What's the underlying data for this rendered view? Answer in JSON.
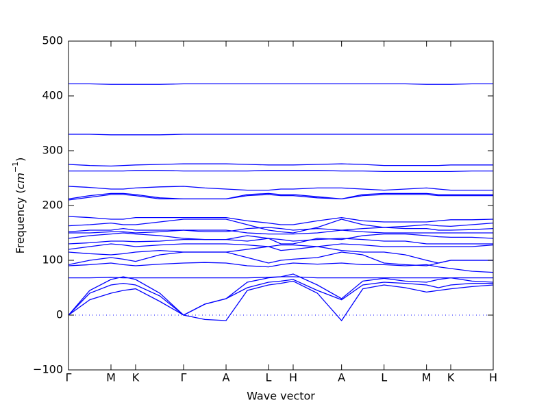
{
  "chart_data": {
    "type": "line",
    "color": "#0000ff",
    "x_label": "Wave vector",
    "y_label": {
      "text": "Frequency (",
      "unit": "cm",
      "exponent": "−1",
      "close": ")"
    },
    "xlim": [
      0,
      1
    ],
    "ylim": [
      -100,
      500
    ],
    "xticks": [
      {
        "value": 0,
        "label": "Γ"
      },
      {
        "value": 0.1,
        "label": "M"
      },
      {
        "value": 0.158,
        "label": "K"
      },
      {
        "value": 0.271,
        "label": "Γ"
      },
      {
        "value": 0.371,
        "label": "A"
      },
      {
        "value": 0.471,
        "label": "L"
      },
      {
        "value": 0.529,
        "label": "H"
      },
      {
        "value": 0.643,
        "label": "A"
      },
      {
        "value": 0.743,
        "label": "L"
      },
      {
        "value": 0.843,
        "label": "M"
      },
      {
        "value": 0.9,
        "label": "K"
      },
      {
        "value": 1,
        "label": "H"
      }
    ],
    "yticks": [
      {
        "value": -100,
        "label": "−100"
      },
      0,
      100,
      200,
      300,
      400,
      500
    ],
    "hline": 0,
    "x": [
      0,
      0.05,
      0.1,
      0.129,
      0.158,
      0.215,
      0.271,
      0.321,
      0.371,
      0.421,
      0.471,
      0.5,
      0.529,
      0.586,
      0.643,
      0.693,
      0.743,
      0.793,
      0.843,
      0.871,
      0.9,
      0.95,
      1
    ],
    "series": [
      {
        "values": [
          0,
          28,
          40,
          45,
          48,
          25,
          0,
          -8,
          -10,
          45,
          55,
          58,
          62,
          40,
          -10,
          48,
          55,
          50,
          42,
          45,
          48,
          52,
          55
        ]
      },
      {
        "values": [
          0,
          40,
          55,
          58,
          55,
          35,
          0,
          20,
          30,
          50,
          60,
          62,
          65,
          45,
          28,
          55,
          60,
          58,
          55,
          50,
          55,
          58,
          58
        ]
      },
      {
        "values": [
          0,
          45,
          65,
          70,
          65,
          40,
          0,
          20,
          30,
          60,
          68,
          70,
          75,
          55,
          30,
          62,
          67,
          62,
          60,
          65,
          68,
          62,
          60
        ]
      },
      {
        "values": [
          68,
          68,
          69,
          68,
          68,
          68,
          68,
          68,
          68,
          68,
          69,
          70,
          70,
          68,
          68,
          68,
          68,
          68,
          68,
          68,
          68,
          68,
          68
        ]
      },
      {
        "values": [
          90,
          92,
          95,
          92,
          90,
          93,
          95,
          96,
          95,
          90,
          88,
          92,
          95,
          93,
          95,
          92,
          92,
          90,
          92,
          88,
          85,
          80,
          78
        ]
      },
      {
        "values": [
          92,
          100,
          105,
          102,
          98,
          110,
          115,
          115,
          115,
          105,
          95,
          100,
          102,
          105,
          115,
          110,
          95,
          92,
          90,
          95,
          100,
          100,
          100
        ]
      },
      {
        "values": [
          115,
          112,
          110,
          112,
          115,
          118,
          115,
          115,
          115,
          120,
          125,
          118,
          120,
          125,
          118,
          115,
          115,
          110,
          100,
          95,
          100,
          100,
          100
        ]
      },
      {
        "values": [
          120,
          125,
          130,
          128,
          125,
          128,
          130,
          130,
          130,
          128,
          125,
          128,
          128,
          125,
          130,
          128,
          125,
          125,
          125,
          125,
          125,
          125,
          128
        ]
      },
      {
        "values": [
          130,
          132,
          135,
          135,
          134,
          135,
          138,
          138,
          138,
          135,
          140,
          138,
          135,
          138,
          140,
          138,
          135,
          135,
          130,
          130,
          130,
          130,
          130
        ]
      },
      {
        "values": [
          140,
          145,
          148,
          150,
          148,
          145,
          140,
          138,
          138,
          145,
          140,
          130,
          130,
          140,
          138,
          145,
          148,
          148,
          145,
          143,
          142,
          142,
          140
        ]
      },
      {
        "values": [
          150,
          150,
          152,
          152,
          150,
          152,
          155,
          155,
          155,
          150,
          148,
          148,
          148,
          150,
          155,
          152,
          150,
          150,
          150,
          150,
          150,
          150,
          150
        ]
      },
      {
        "values": [
          152,
          155,
          155,
          158,
          155,
          155,
          155,
          152,
          152,
          158,
          160,
          158,
          155,
          158,
          155,
          158,
          160,
          158,
          158,
          155,
          155,
          156,
          158
        ]
      },
      {
        "values": [
          163,
          165,
          168,
          165,
          165,
          170,
          175,
          175,
          175,
          165,
          155,
          152,
          150,
          160,
          175,
          165,
          160,
          162,
          165,
          163,
          162,
          165,
          168
        ]
      },
      {
        "values": [
          180,
          178,
          175,
          175,
          178,
          178,
          178,
          178,
          178,
          172,
          168,
          165,
          165,
          172,
          178,
          172,
          170,
          170,
          170,
          172,
          174,
          174,
          175
        ]
      },
      {
        "values": [
          210,
          215,
          220,
          220,
          218,
          212,
          212,
          212,
          212,
          218,
          220,
          218,
          218,
          214,
          212,
          218,
          220,
          220,
          220,
          218,
          218,
          218,
          218
        ]
      },
      {
        "values": [
          212,
          218,
          222,
          222,
          220,
          214,
          212,
          212,
          212,
          220,
          222,
          220,
          220,
          216,
          212,
          220,
          222,
          222,
          222,
          220,
          220,
          220,
          220
        ]
      },
      {
        "values": [
          235,
          233,
          230,
          230,
          232,
          234,
          235,
          232,
          230,
          228,
          228,
          230,
          230,
          232,
          232,
          230,
          228,
          230,
          232,
          230,
          228,
          228,
          228
        ]
      },
      {
        "values": [
          263,
          263,
          263,
          263,
          264,
          264,
          263,
          263,
          263,
          263,
          264,
          264,
          264,
          264,
          263,
          263,
          262,
          262,
          262,
          262,
          262,
          263,
          263
        ]
      },
      {
        "values": [
          275,
          273,
          272,
          273,
          274,
          275,
          276,
          276,
          276,
          275,
          274,
          274,
          274,
          275,
          276,
          275,
          273,
          273,
          273,
          273,
          274,
          274,
          274
        ]
      },
      {
        "values": [
          330,
          330,
          329,
          329,
          329,
          329,
          330,
          330,
          330,
          330,
          330,
          330,
          330,
          330,
          330,
          330,
          330,
          330,
          330,
          330,
          330,
          330,
          330
        ]
      },
      {
        "values": [
          422,
          422,
          421,
          421,
          421,
          421,
          422,
          422,
          422,
          422,
          422,
          422,
          422,
          422,
          422,
          422,
          422,
          422,
          421,
          421,
          421,
          422,
          422
        ]
      }
    ]
  }
}
